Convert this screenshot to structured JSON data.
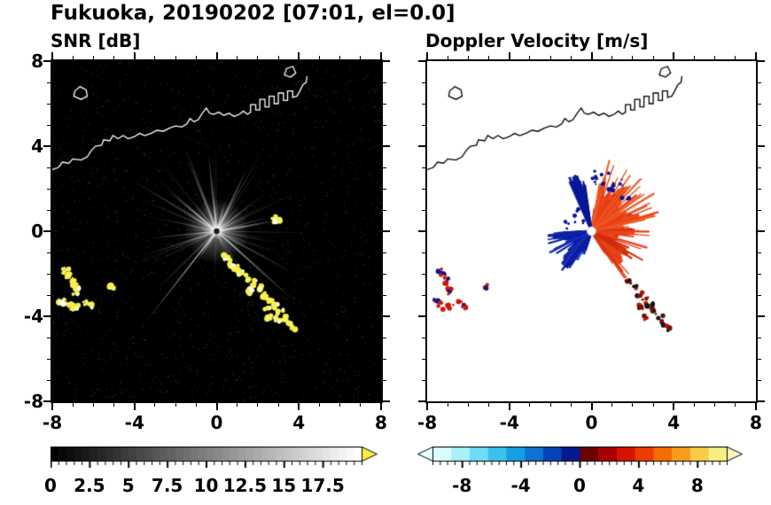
{
  "figure": {
    "title": "Fukuoka, 20190202 [07:01, el=0.0]"
  },
  "coastline": {
    "main": [
      [
        -8.0,
        2.9
      ],
      [
        -7.7,
        3.0
      ],
      [
        -7.5,
        3.25
      ],
      [
        -7.2,
        3.2
      ],
      [
        -7.0,
        3.4
      ],
      [
        -6.6,
        3.35
      ],
      [
        -6.3,
        3.5
      ],
      [
        -6.1,
        3.8
      ],
      [
        -5.9,
        4.0
      ],
      [
        -5.6,
        4.05
      ],
      [
        -5.5,
        4.3
      ],
      [
        -5.2,
        4.25
      ],
      [
        -5.05,
        4.5
      ],
      [
        -4.8,
        4.35
      ],
      [
        -4.55,
        4.5
      ],
      [
        -4.3,
        4.35
      ],
      [
        -4.0,
        4.45
      ],
      [
        -3.75,
        4.6
      ],
      [
        -3.5,
        4.5
      ],
      [
        -3.2,
        4.6
      ],
      [
        -2.9,
        4.75
      ],
      [
        -2.6,
        4.7
      ],
      [
        -2.3,
        4.85
      ],
      [
        -2.0,
        4.95
      ],
      [
        -1.7,
        4.9
      ],
      [
        -1.45,
        5.05
      ],
      [
        -1.3,
        5.3
      ],
      [
        -1.1,
        5.15
      ],
      [
        -0.9,
        5.25
      ],
      [
        -0.7,
        5.55
      ],
      [
        -0.5,
        5.8
      ],
      [
        -0.35,
        5.55
      ],
      [
        -0.15,
        5.5
      ],
      [
        0.1,
        5.6
      ],
      [
        0.35,
        5.45
      ],
      [
        0.6,
        5.55
      ],
      [
        0.85,
        5.4
      ],
      [
        1.1,
        5.5
      ],
      [
        1.3,
        5.65
      ],
      [
        1.5,
        5.5
      ],
      [
        1.65,
        5.6
      ],
      [
        1.65,
        5.95
      ],
      [
        1.9,
        5.95
      ],
      [
        1.9,
        5.7
      ],
      [
        2.1,
        5.7
      ],
      [
        2.1,
        6.2
      ],
      [
        2.35,
        6.2
      ],
      [
        2.35,
        5.85
      ],
      [
        2.55,
        5.85
      ],
      [
        2.55,
        6.35
      ],
      [
        2.8,
        6.35
      ],
      [
        2.8,
        6.0
      ],
      [
        3.0,
        6.0
      ],
      [
        3.0,
        6.5
      ],
      [
        3.25,
        6.5
      ],
      [
        3.25,
        6.15
      ],
      [
        3.45,
        6.15
      ],
      [
        3.45,
        6.6
      ],
      [
        3.7,
        6.6
      ],
      [
        3.7,
        6.3
      ],
      [
        3.9,
        6.35
      ],
      [
        4.05,
        6.6
      ],
      [
        4.2,
        6.9
      ],
      [
        4.35,
        7.0
      ],
      [
        4.4,
        7.3
      ]
    ],
    "island": [
      [
        -6.95,
        6.35
      ],
      [
        -6.6,
        6.2
      ],
      [
        -6.3,
        6.35
      ],
      [
        -6.35,
        6.65
      ],
      [
        -6.65,
        6.8
      ],
      [
        -6.9,
        6.6
      ]
    ],
    "islet": [
      [
        3.3,
        7.35
      ],
      [
        3.6,
        7.25
      ],
      [
        3.85,
        7.45
      ],
      [
        3.7,
        7.75
      ],
      [
        3.4,
        7.65
      ]
    ]
  },
  "chart_data": [
    {
      "id": "snr",
      "type": "heatmap",
      "title": "SNR [dB]",
      "description": "PPI radar scan of signal-to-noise ratio: black background, gray radial beams emanating from radar site at (0,0), bright yellow ground-clutter arcs near (-7,-2.5) and along a diagonal chain from (0.5,-1.3) to (3.8,-4.6), white coastline overlay along the top",
      "xlim": [
        -8,
        8
      ],
      "ylim": [
        -8,
        8
      ],
      "xtick_values": [
        -8,
        -4,
        0,
        4,
        8
      ],
      "xtick_labels": [
        "-8",
        "-4",
        "0",
        "4",
        "8"
      ],
      "ytick_values": [
        8,
        4,
        0,
        -4,
        -8
      ],
      "ytick_labels": [
        "8",
        "4",
        "0",
        "-4",
        "-8"
      ],
      "background": "#000000",
      "radar_center": [
        0,
        0
      ],
      "seed": 11,
      "features": {
        "beam_count": 120,
        "bright_beams": [
          {
            "deg": 232,
            "len": 5.6
          },
          {
            "deg": 318,
            "len": 5.0
          },
          {
            "deg": 10,
            "len": 3.0
          },
          {
            "deg": 64,
            "len": 3.4
          },
          {
            "deg": 96,
            "len": 3.8
          },
          {
            "deg": 140,
            "len": 3.2
          }
        ],
        "clutter_color": "#f8f04c",
        "clutter_points": [
          [
            -7.35,
            -1.85
          ],
          [
            -7.2,
            -2.1
          ],
          [
            -7.05,
            -2.35
          ],
          [
            -6.9,
            -2.6
          ],
          [
            -6.85,
            -2.85
          ],
          [
            -7.55,
            -3.25
          ],
          [
            -7.35,
            -3.45
          ],
          [
            -7.1,
            -3.55
          ],
          [
            -6.85,
            -3.6
          ],
          [
            -6.35,
            -3.35
          ],
          [
            -6.2,
            -3.5
          ],
          [
            -5.1,
            -2.6
          ],
          [
            0.45,
            -1.25
          ],
          [
            0.7,
            -1.5
          ],
          [
            0.95,
            -1.75
          ],
          [
            1.2,
            -1.95
          ],
          [
            1.5,
            -2.2
          ],
          [
            1.8,
            -2.45
          ],
          [
            1.6,
            -2.8
          ],
          [
            2.1,
            -2.7
          ],
          [
            2.35,
            -3.0
          ],
          [
            2.6,
            -3.25
          ],
          [
            2.45,
            -3.6
          ],
          [
            2.85,
            -3.5
          ],
          [
            3.1,
            -3.8
          ],
          [
            3.0,
            -4.15
          ],
          [
            3.35,
            -4.1
          ],
          [
            3.55,
            -4.35
          ],
          [
            3.75,
            -4.55
          ],
          [
            2.55,
            -4.05
          ],
          [
            2.85,
            0.55
          ],
          [
            3.0,
            0.5
          ]
        ]
      },
      "colorbar": {
        "range": [
          0,
          20
        ],
        "tick_values": [
          0,
          2.5,
          5,
          7.5,
          10,
          12.5,
          15,
          17.5
        ],
        "tick_labels": [
          "0",
          "2.5",
          "5",
          "7.5",
          "10",
          "12.5",
          "15",
          "17.5"
        ],
        "style": "grayscale black to white",
        "over_color": "#f5ee3e"
      }
    },
    {
      "id": "doppler",
      "type": "heatmap",
      "title": "Doppler Velocity [m/s]",
      "description": "PPI radar scan of Doppler velocity: white background, red/orange fan (positive velocity) to the east and northeast of radar at (0,0) reaching radius ~3.3, dark blue fan (negative velocity) to the southwest reaching ~2.2, navy streak toward the north-northwest, red/navy/black ground-clutter specks near (-7,-2.5) and along diagonal from (1.8,-2.5) to (3.8,-4.6), black coastline overlay along the top",
      "xlim": [
        -8,
        8
      ],
      "ylim": [
        -8,
        8
      ],
      "xtick_values": [
        -8,
        -4,
        0,
        4,
        8
      ],
      "xtick_labels": [
        "-8",
        "-4",
        "0",
        "4",
        "8"
      ],
      "ytick_values": [
        8,
        4,
        0,
        -4,
        -8
      ],
      "ytick_labels": [
        "8",
        "4",
        "0",
        "-4",
        "-8"
      ],
      "background": "#ffffff",
      "radar_center": [
        0,
        0
      ],
      "seed": 23,
      "features": {
        "fans": [
          {
            "angle_deg": [
              -58,
              82
            ],
            "r": [
              0.7,
              2.1
            ],
            "colors": [
              "#e23c14",
              "#ef5222",
              "#cf2a08",
              "#f26a30"
            ],
            "width": 2.8
          },
          {
            "angle_deg": [
              14,
              80
            ],
            "r": [
              1.3,
              3.25
            ],
            "colors": [
              "#e23c14",
              "#f05a20",
              "#d83010"
            ],
            "width": 2.4
          },
          {
            "angle_deg": [
              183,
              252
            ],
            "r": [
              0.7,
              2.15
            ],
            "colors": [
              "#1430c0",
              "#0a1ca0",
              "#2a48d8",
              "#051280"
            ],
            "width": 2.8
          },
          {
            "angle_deg": [
              98,
              114
            ],
            "r": [
              2.1,
              2.85
            ],
            "colors": [
              "#051280",
              "#0a1ca0"
            ],
            "width": 2.2
          }
        ],
        "spikes": [
          {
            "angle_deg": [
              10,
              80
            ],
            "r": [
              2.6,
              3.6
            ],
            "count": 26,
            "colors": [
              "#e8401a",
              "#f05a20"
            ]
          },
          {
            "angle_deg": [
              -58,
              8
            ],
            "r": [
              1.8,
              2.9
            ],
            "count": 18,
            "colors": [
              "#e8401a",
              "#d02c08"
            ]
          },
          {
            "angle_deg": [
              188,
              248
            ],
            "r": [
              1.8,
              2.5
            ],
            "count": 12,
            "colors": [
              "#0a1ca0",
              "#1430c0"
            ]
          }
        ],
        "dots": [
          {
            "angle_deg": [
              40,
              92
            ],
            "r": [
              2.2,
              3.1
            ],
            "count": 22,
            "color": "#0a1690"
          },
          {
            "angle_deg": [
              120,
              175
            ],
            "r": [
              0.5,
              1.4
            ],
            "count": 10,
            "color": "#0a1690"
          }
        ],
        "clutter": [
          {
            "points": [
              [
                -7.35,
                -1.85
              ],
              [
                -7.2,
                -2.1
              ],
              [
                -7.05,
                -2.35
              ],
              [
                -6.9,
                -2.6
              ],
              [
                -6.85,
                -2.85
              ],
              [
                -7.55,
                -3.25
              ],
              [
                -7.35,
                -3.45
              ],
              [
                -7.1,
                -3.55
              ],
              [
                -6.85,
                -3.6
              ],
              [
                -6.35,
                -3.35
              ],
              [
                -6.2,
                -3.5
              ],
              [
                -5.1,
                -2.6
              ]
            ],
            "colors": [
              "#cc1808",
              "#cc1808",
              "#0a1690"
            ]
          },
          {
            "points": [
              [
                1.8,
                -2.45
              ],
              [
                2.1,
                -2.7
              ],
              [
                2.35,
                -3.0
              ],
              [
                2.6,
                -3.25
              ],
              [
                2.45,
                -3.6
              ],
              [
                2.85,
                -3.5
              ],
              [
                3.1,
                -3.8
              ],
              [
                3.35,
                -4.1
              ],
              [
                3.55,
                -4.35
              ],
              [
                3.75,
                -4.55
              ],
              [
                2.55,
                -4.05
              ]
            ],
            "colors": [
              "#b81608",
              "#141414",
              "#7a1008"
            ]
          }
        ]
      },
      "colorbar": {
        "range": [
          -10,
          10
        ],
        "tick_values": [
          -8,
          -4,
          0,
          4,
          8
        ],
        "tick_labels": [
          "-8",
          "-4",
          "0",
          "4",
          "8"
        ],
        "style": "cyan-blue-navy to darkred-red-orange-yellow diverging",
        "colors": [
          "#dafcfc",
          "#a8f0fa",
          "#6edcf6",
          "#38c2ee",
          "#16a0e2",
          "#0e72d2",
          "#0842ba",
          "#041a8e",
          "#6e0000",
          "#a80000",
          "#d41400",
          "#ee3c00",
          "#f66c00",
          "#f89c1c",
          "#f8cc48",
          "#f8ee80"
        ],
        "under_color": "#e8fdfd",
        "over_color": "#fbf4c0"
      }
    }
  ]
}
